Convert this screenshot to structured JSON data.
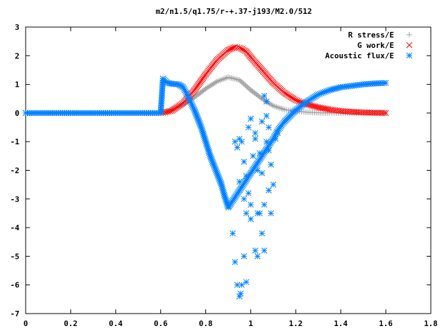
{
  "chart_data": {
    "type": "scatter",
    "title": "m2/n1.5/q1.75/r-+.37-j193/M2.0/512",
    "xlabel": "",
    "ylabel": "",
    "xlim": [
      0,
      1.8
    ],
    "ylim": [
      -7,
      3
    ],
    "x_ticks": [
      "0",
      "0.2",
      "0.4",
      "0.6",
      "0.8",
      "1",
      "1.2",
      "1.4",
      "1.6",
      "1.8"
    ],
    "y_ticks": [
      "3",
      "2",
      "1",
      "0",
      "-1",
      "-2",
      "-3",
      "-4",
      "-5",
      "-6",
      "-7"
    ],
    "legend_position": "top-right",
    "series": [
      {
        "name": "R stress/E",
        "marker": "+",
        "color": "#a0a0a0",
        "x": [
          0.0,
          0.1,
          0.2,
          0.3,
          0.4,
          0.5,
          0.6,
          0.62,
          0.65,
          0.7,
          0.75,
          0.8,
          0.85,
          0.9,
          0.95,
          1.0,
          1.05,
          1.1,
          1.15,
          1.2,
          1.25,
          1.3,
          1.35,
          1.4,
          1.45,
          1.5,
          1.55,
          1.6
        ],
        "y": [
          0.0,
          0.0,
          0.0,
          0.0,
          0.0,
          0.0,
          0.0,
          0.05,
          0.12,
          0.3,
          0.55,
          0.85,
          1.1,
          1.25,
          1.15,
          0.8,
          0.5,
          0.25,
          0.12,
          0.06,
          0.03,
          0.01,
          0.0,
          0.0,
          0.0,
          0.0,
          0.0,
          0.0
        ]
      },
      {
        "name": "G work/E",
        "marker": "x",
        "color": "#ff0000",
        "x": [
          0.6,
          0.62,
          0.65,
          0.7,
          0.75,
          0.8,
          0.85,
          0.9,
          0.93,
          0.95,
          0.98,
          1.0,
          1.05,
          1.1,
          1.15,
          1.2,
          1.25,
          1.3,
          1.35,
          1.4,
          1.45,
          1.5,
          1.55,
          1.6
        ],
        "y": [
          0.0,
          0.02,
          0.08,
          0.35,
          0.8,
          1.35,
          1.85,
          2.2,
          2.3,
          2.28,
          2.15,
          1.95,
          1.5,
          1.05,
          0.7,
          0.45,
          0.3,
          0.2,
          0.12,
          0.07,
          0.04,
          0.02,
          0.01,
          0.0
        ]
      },
      {
        "name": "Acoustic flux/E",
        "marker": "*",
        "color": "#0080ff",
        "x": [
          0.0,
          0.1,
          0.2,
          0.3,
          0.4,
          0.5,
          0.6,
          0.61,
          0.63,
          0.65,
          0.68,
          0.7,
          0.72,
          0.75,
          0.78,
          0.8,
          0.82,
          0.85,
          0.87,
          0.88,
          0.9,
          1.1,
          1.12,
          1.15,
          1.2,
          1.25,
          1.3,
          1.35,
          1.4,
          1.45,
          1.5,
          1.55,
          1.6
        ],
        "y": [
          0.0,
          0.0,
          0.0,
          0.0,
          0.0,
          0.0,
          0.0,
          1.2,
          1.05,
          1.02,
          1.0,
          0.9,
          0.6,
          0.1,
          -0.5,
          -1.0,
          -1.5,
          -2.1,
          -2.5,
          -2.8,
          -3.3,
          -0.9,
          -0.6,
          -0.3,
          0.1,
          0.4,
          0.65,
          0.8,
          0.9,
          0.95,
          1.0,
          1.03,
          1.05
        ]
      }
    ],
    "scattered_points": [
      [
        0.92,
        -4.2
      ],
      [
        0.93,
        -5.2
      ],
      [
        0.94,
        -6.0
      ],
      [
        0.95,
        -6.4
      ],
      [
        0.955,
        -6.3
      ],
      [
        0.96,
        -6.0
      ],
      [
        0.97,
        -5.0
      ],
      [
        0.98,
        -3.5
      ],
      [
        0.93,
        -1.0
      ],
      [
        0.94,
        -1.2
      ],
      [
        0.95,
        -0.9
      ],
      [
        0.96,
        -1.0
      ],
      [
        0.97,
        -1.7
      ],
      [
        0.98,
        -2.2
      ],
      [
        0.99,
        -2.8
      ],
      [
        1.0,
        -3.2
      ],
      [
        0.95,
        -2.4
      ],
      [
        0.97,
        -3.0
      ],
      [
        0.99,
        -0.5
      ],
      [
        1.0,
        -0.2
      ],
      [
        1.01,
        -1.5
      ],
      [
        1.02,
        -0.9
      ],
      [
        1.03,
        -2.0
      ],
      [
        1.04,
        -3.5
      ],
      [
        1.05,
        -4.2
      ],
      [
        1.06,
        0.6
      ],
      [
        1.07,
        0.4
      ],
      [
        1.08,
        -2.7
      ],
      [
        1.09,
        -3.5
      ],
      [
        1.1,
        -2.5
      ],
      [
        1.02,
        -4.8
      ],
      [
        1.03,
        -5.0
      ],
      [
        1.05,
        -2.1
      ],
      [
        1.06,
        -3.2
      ],
      [
        1.08,
        -1.3
      ],
      [
        1.09,
        -1.8
      ],
      [
        1.11,
        -0.9
      ],
      [
        1.04,
        -1.4
      ],
      [
        1.0,
        -3.7
      ],
      [
        0.98,
        -5.9
      ],
      [
        1.07,
        -0.1
      ],
      [
        1.08,
        -0.5
      ],
      [
        1.12,
        -0.7
      ],
      [
        1.05,
        -0.3
      ],
      [
        1.02,
        -0.7
      ],
      [
        1.07,
        -1.0
      ],
      [
        1.06,
        -4.8
      ],
      [
        1.03,
        -3.5
      ]
    ]
  }
}
